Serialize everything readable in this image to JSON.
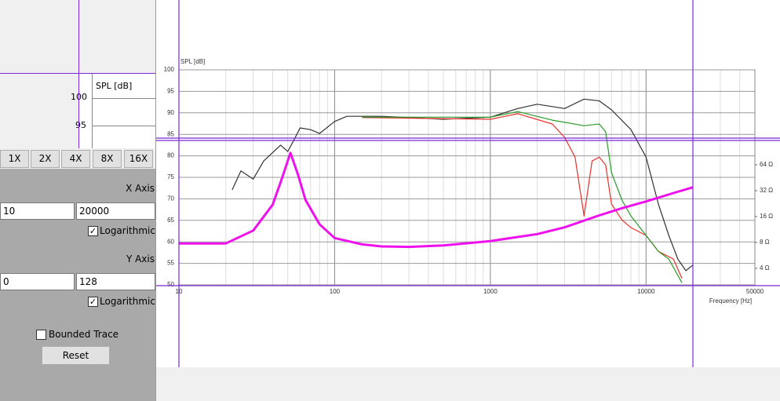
{
  "zoom_preview": {
    "axis_label": "SPL [dB]",
    "ticks": [
      "100",
      "95"
    ]
  },
  "zoom_buttons": [
    "1X",
    "2X",
    "4X",
    "8X",
    "16X"
  ],
  "x_axis": {
    "label": "X Axis",
    "min": "10",
    "max": "20000",
    "logarithmic_label": "Logarithmic",
    "logarithmic": true
  },
  "y_axis": {
    "label": "Y Axis",
    "min": "0",
    "max": "128",
    "logarithmic_label": "Logarithmic",
    "logarithmic": true
  },
  "bounded_trace": {
    "label": "Bounded Trace",
    "checked": false
  },
  "reset_button": "Reset",
  "chart_data": {
    "type": "line",
    "ylabel": "SPL [dB]",
    "xlabel": "Frequency [Hz]",
    "xscale": "log",
    "xlim": [
      10,
      50000
    ],
    "xticks": [
      10,
      100,
      1000,
      10000,
      50000
    ],
    "ylim": [
      50,
      100
    ],
    "yticks": [
      50,
      55,
      60,
      65,
      70,
      75,
      80,
      85,
      90,
      95,
      100
    ],
    "y2scale": "log",
    "y2lim": [
      2.57,
      813
    ],
    "y2ticks": [
      {
        "value": 4,
        "label": "4 Ω"
      },
      {
        "value": 8,
        "label": "8 Ω"
      },
      {
        "value": 16,
        "label": "16 Ω"
      },
      {
        "value": 32,
        "label": "32 Ω"
      },
      {
        "value": 64,
        "label": "64 Ω"
      }
    ],
    "grid": true,
    "series": [
      {
        "color": "#333333",
        "x": [
          22,
          25,
          30,
          35,
          45,
          50,
          55,
          60,
          70,
          80,
          100,
          120,
          200,
          300,
          500,
          1000,
          1500,
          2000,
          3000,
          4000,
          5000,
          6000,
          8000,
          10000,
          12000,
          14000,
          16000,
          18000,
          20000
        ],
        "values": [
          72.1,
          76.5,
          74.6,
          78.8,
          82.5,
          81,
          83.8,
          86.5,
          86.1,
          85.2,
          88,
          89.2,
          89.2,
          88.9,
          88.5,
          89,
          91,
          92,
          91,
          93.2,
          92.8,
          90.7,
          86.1,
          79.7,
          68.8,
          61.5,
          56,
          53.3,
          54.6
        ]
      },
      {
        "color": "#e8302a",
        "x": [
          150,
          1000,
          1500,
          2500,
          3000,
          3500,
          4000,
          4500,
          5000,
          5500,
          6000,
          7000,
          8000,
          10000,
          12000,
          15000,
          17000
        ],
        "values": [
          88.9,
          88.5,
          89.8,
          87.4,
          84.3,
          79.7,
          66,
          78.8,
          79.7,
          77.9,
          68.8,
          65.1,
          63.3,
          61.5,
          57.8,
          56,
          51.5
        ]
      },
      {
        "color": "#2a9a2a",
        "x": [
          150,
          1000,
          1500,
          2500,
          4000,
          5000,
          5500,
          6000,
          7000,
          8000,
          10000,
          12000,
          14000,
          17000
        ],
        "values": [
          89,
          89,
          90.3,
          88.3,
          87,
          87.4,
          85.6,
          76.1,
          69.7,
          66,
          61.5,
          57.8,
          56,
          50.5
        ]
      },
      {
        "color": "#ee11ee",
        "axis": "y2",
        "x": [
          10,
          20,
          30,
          40,
          46,
          52,
          58,
          65,
          80,
          100,
          150,
          200,
          300,
          500,
          1000,
          2000,
          3000,
          5000,
          7000,
          10000,
          15000,
          20000
        ],
        "values": [
          7.8,
          7.8,
          11,
          22,
          45,
          88,
          50,
          25,
          13,
          9,
          7.6,
          7.2,
          7.1,
          7.4,
          8.3,
          10,
          12,
          16.5,
          20,
          24,
          30,
          35
        ]
      }
    ]
  }
}
